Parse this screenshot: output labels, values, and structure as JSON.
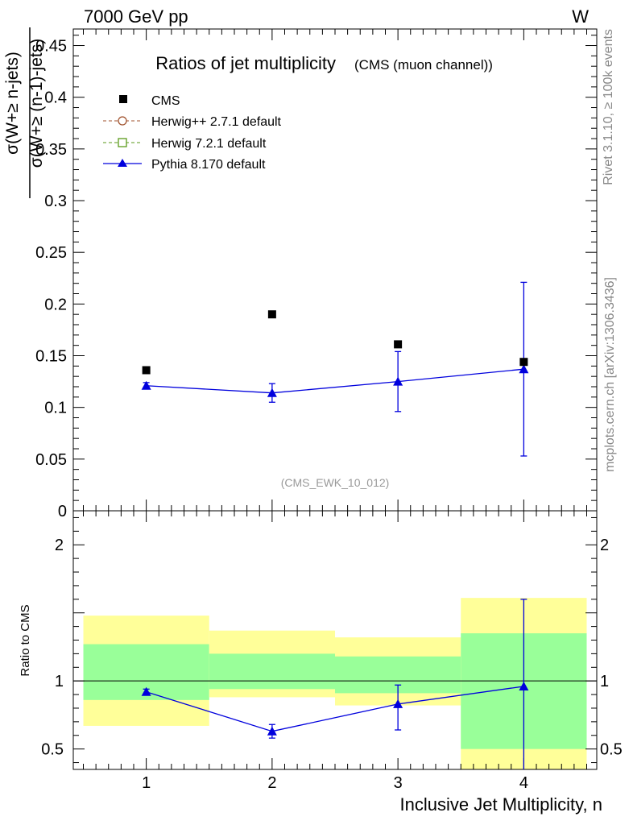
{
  "header": {
    "energy_label": "7000 GeV pp",
    "process_label": "W",
    "rivet_label": "Rivet 3.1.10, ≥ 100k events",
    "mcplots_label": "mcplots.cern.ch [arXiv:1306.3436]"
  },
  "chart_data": [
    {
      "type": "scatter",
      "title": "Ratios of jet multiplicity",
      "subtitle": "(CMS (muon channel))",
      "ylabel_numerator": "σ(W+≥ n-jets)",
      "ylabel_denominator": "σ(W+≥ (n-1)-jets)",
      "analysis_label": "(CMS_EWK_10_012)",
      "xlim": [
        0.42,
        4.58
      ],
      "ylim": [
        0,
        0.466
      ],
      "yticks": [
        0,
        0.05,
        0.1,
        0.15,
        0.2,
        0.25,
        0.3,
        0.35,
        0.4,
        0.45
      ],
      "ytick_labels": [
        "0",
        "0.05",
        "0.1",
        "0.15",
        "0.2",
        "0.25",
        "0.3",
        "0.35",
        "0.4",
        "0.45"
      ],
      "legend_position": "top-left",
      "legend": [
        {
          "label": "CMS",
          "color": "#000000",
          "marker": "filled-square",
          "line": "none"
        },
        {
          "label": "Herwig++ 2.7.1 default",
          "color": "#a0522d",
          "marker": "open-circle",
          "line": "dashed"
        },
        {
          "label": "Herwig 7.2.1 default",
          "color": "#5a9a1a",
          "marker": "open-square",
          "line": "dashed"
        },
        {
          "label": "Pythia 8.170 default",
          "color": "#0000dd",
          "marker": "filled-triangle",
          "line": "solid"
        }
      ],
      "series": [
        {
          "name": "CMS",
          "x": [
            1,
            2,
            3,
            4
          ],
          "y": [
            0.136,
            0.19,
            0.161,
            0.144
          ]
        },
        {
          "name": "Pythia 8.170 default",
          "x": [
            1,
            2,
            3,
            4
          ],
          "y": [
            0.121,
            0.114,
            0.125,
            0.137
          ],
          "err_low": [
            0.003,
            0.009,
            0.029,
            0.084
          ],
          "err_high": [
            0.003,
            0.009,
            0.029,
            0.084
          ]
        }
      ]
    },
    {
      "type": "scatter",
      "ylabel": "Ratio to CMS",
      "xlabel": "Inclusive Jet Multiplicity, n",
      "xlim": [
        0.42,
        4.58
      ],
      "ylim": [
        0.35,
        2.25
      ],
      "yticks": [
        0.5,
        1,
        2
      ],
      "ytick_labels": [
        "0.5",
        "1",
        "2"
      ],
      "xticks": [
        1,
        2,
        3,
        4
      ],
      "xtick_labels": [
        "1",
        "2",
        "3",
        "4"
      ],
      "reference_line": 1,
      "bands": [
        {
          "x0": 0.5,
          "x1": 1.5,
          "yellow": [
            0.67,
            1.48
          ],
          "green": [
            0.86,
            1.27
          ]
        },
        {
          "x0": 1.5,
          "x1": 2.5,
          "yellow": [
            0.88,
            1.37
          ],
          "green": [
            0.94,
            1.2
          ]
        },
        {
          "x0": 2.5,
          "x1": 3.5,
          "yellow": [
            0.82,
            1.32
          ],
          "green": [
            0.91,
            1.18
          ]
        },
        {
          "x0": 3.5,
          "x1": 4.5,
          "yellow": [
            0.35,
            1.61
          ],
          "green": [
            0.5,
            1.35
          ]
        }
      ],
      "band_colors": {
        "yellow": "#ffff99",
        "green": "#99ff99"
      },
      "series": [
        {
          "name": "Pythia 8.170 default",
          "x": [
            1,
            2,
            3,
            4
          ],
          "y": [
            0.92,
            0.63,
            0.83,
            0.96
          ],
          "err_low": [
            0.02,
            0.05,
            0.19,
            0.61
          ],
          "err_high": [
            0.02,
            0.05,
            0.14,
            0.64
          ]
        }
      ]
    }
  ]
}
